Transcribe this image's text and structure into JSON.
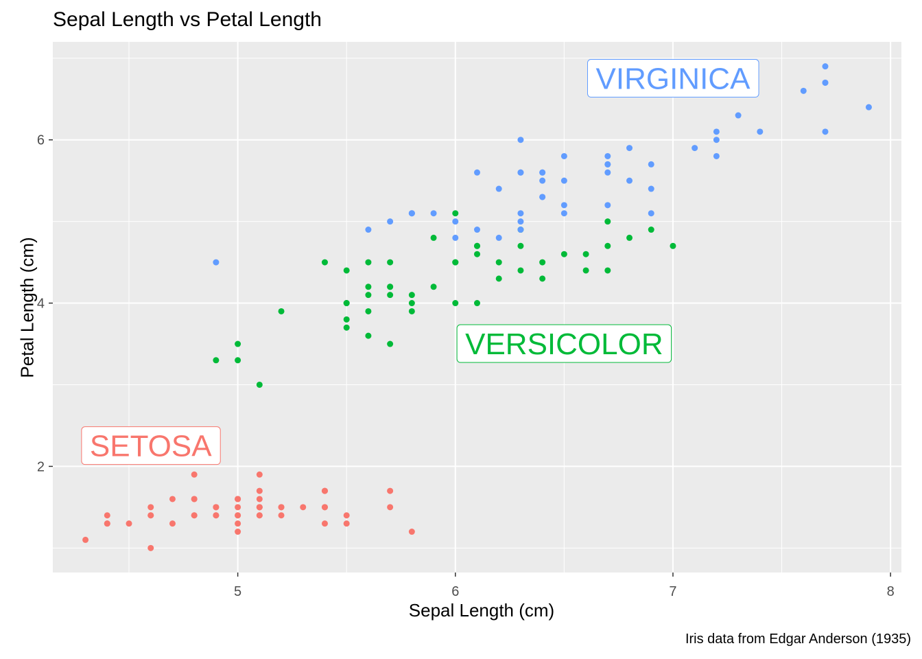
{
  "chart_data": {
    "type": "scatter",
    "title": "Sepal Length vs Petal Length",
    "xlabel": "Sepal Length (cm)",
    "ylabel": "Petal Length (cm)",
    "caption": "Iris data from Edgar Anderson (1935)",
    "xlim": [
      4.15,
      8.05
    ],
    "ylim": [
      0.7,
      7.2
    ],
    "x_ticks": [
      5,
      6,
      7,
      8
    ],
    "y_ticks": [
      2,
      4,
      6
    ],
    "grid": true,
    "background": "#ebebeb",
    "series": [
      {
        "label_text": "SETOSA",
        "color": "#F8766D",
        "label_pos": [
          4.6,
          2.25
        ],
        "points": [
          [
            5.1,
            1.4
          ],
          [
            4.9,
            1.4
          ],
          [
            4.7,
            1.3
          ],
          [
            4.6,
            1.5
          ],
          [
            5.0,
            1.4
          ],
          [
            5.4,
            1.7
          ],
          [
            4.6,
            1.4
          ],
          [
            5.0,
            1.5
          ],
          [
            4.4,
            1.4
          ],
          [
            4.9,
            1.5
          ],
          [
            5.4,
            1.5
          ],
          [
            4.8,
            1.6
          ],
          [
            4.8,
            1.4
          ],
          [
            4.3,
            1.1
          ],
          [
            5.8,
            1.2
          ],
          [
            5.7,
            1.5
          ],
          [
            5.4,
            1.3
          ],
          [
            5.1,
            1.4
          ],
          [
            5.7,
            1.7
          ],
          [
            5.1,
            1.5
          ],
          [
            5.4,
            1.7
          ],
          [
            5.1,
            1.5
          ],
          [
            4.6,
            1.0
          ],
          [
            5.1,
            1.7
          ],
          [
            4.8,
            1.9
          ],
          [
            5.0,
            1.6
          ],
          [
            5.0,
            1.6
          ],
          [
            5.2,
            1.5
          ],
          [
            5.2,
            1.4
          ],
          [
            4.7,
            1.6
          ],
          [
            4.8,
            1.6
          ],
          [
            5.4,
            1.5
          ],
          [
            5.2,
            1.5
          ],
          [
            5.5,
            1.4
          ],
          [
            4.9,
            1.5
          ],
          [
            5.0,
            1.2
          ],
          [
            5.5,
            1.3
          ],
          [
            4.9,
            1.4
          ],
          [
            4.4,
            1.3
          ],
          [
            5.1,
            1.5
          ],
          [
            5.0,
            1.3
          ],
          [
            4.5,
            1.3
          ],
          [
            4.4,
            1.3
          ],
          [
            5.0,
            1.6
          ],
          [
            5.1,
            1.9
          ],
          [
            4.8,
            1.4
          ],
          [
            5.1,
            1.6
          ],
          [
            4.6,
            1.4
          ],
          [
            5.3,
            1.5
          ],
          [
            5.0,
            1.4
          ]
        ]
      },
      {
        "label_text": "VERSICOLOR",
        "color": "#00BA38",
        "label_pos": [
          6.5,
          3.5
        ],
        "points": [
          [
            7.0,
            4.7
          ],
          [
            6.4,
            4.5
          ],
          [
            6.9,
            4.9
          ],
          [
            5.5,
            4.0
          ],
          [
            6.5,
            4.6
          ],
          [
            5.7,
            4.5
          ],
          [
            6.3,
            4.7
          ],
          [
            4.9,
            3.3
          ],
          [
            6.6,
            4.6
          ],
          [
            5.2,
            3.9
          ],
          [
            5.0,
            3.5
          ],
          [
            5.9,
            4.2
          ],
          [
            6.0,
            4.0
          ],
          [
            6.1,
            4.7
          ],
          [
            5.6,
            3.6
          ],
          [
            6.7,
            4.4
          ],
          [
            5.6,
            4.5
          ],
          [
            5.8,
            4.1
          ],
          [
            6.2,
            4.5
          ],
          [
            5.6,
            3.9
          ],
          [
            5.9,
            4.8
          ],
          [
            6.1,
            4.0
          ],
          [
            6.3,
            4.9
          ],
          [
            6.1,
            4.7
          ],
          [
            6.4,
            4.3
          ],
          [
            6.6,
            4.4
          ],
          [
            6.8,
            4.8
          ],
          [
            6.7,
            5.0
          ],
          [
            6.0,
            4.5
          ],
          [
            5.7,
            3.5
          ],
          [
            5.5,
            3.8
          ],
          [
            5.5,
            3.7
          ],
          [
            5.8,
            3.9
          ],
          [
            6.0,
            5.1
          ],
          [
            5.4,
            4.5
          ],
          [
            6.0,
            4.5
          ],
          [
            6.7,
            4.7
          ],
          [
            6.3,
            4.4
          ],
          [
            5.6,
            4.1
          ],
          [
            5.5,
            4.0
          ],
          [
            5.5,
            4.4
          ],
          [
            6.1,
            4.6
          ],
          [
            5.8,
            4.0
          ],
          [
            5.0,
            3.3
          ],
          [
            5.6,
            4.2
          ],
          [
            5.7,
            4.2
          ],
          [
            5.7,
            4.2
          ],
          [
            6.2,
            4.3
          ],
          [
            5.1,
            3.0
          ],
          [
            5.7,
            4.1
          ]
        ]
      },
      {
        "label_text": "VIRGINICA",
        "color": "#619CFF",
        "label_pos": [
          7.0,
          6.75
        ],
        "points": [
          [
            6.3,
            6.0
          ],
          [
            5.8,
            5.1
          ],
          [
            7.1,
            5.9
          ],
          [
            6.3,
            5.6
          ],
          [
            6.5,
            5.8
          ],
          [
            7.6,
            6.6
          ],
          [
            4.9,
            4.5
          ],
          [
            7.3,
            6.3
          ],
          [
            6.7,
            5.8
          ],
          [
            7.2,
            6.1
          ],
          [
            6.5,
            5.1
          ],
          [
            6.4,
            5.3
          ],
          [
            6.8,
            5.5
          ],
          [
            5.7,
            5.0
          ],
          [
            5.8,
            5.1
          ],
          [
            6.4,
            5.3
          ],
          [
            6.5,
            5.5
          ],
          [
            7.7,
            6.7
          ],
          [
            7.7,
            6.9
          ],
          [
            6.0,
            5.0
          ],
          [
            6.9,
            5.7
          ],
          [
            5.6,
            4.9
          ],
          [
            7.7,
            6.7
          ],
          [
            6.3,
            4.9
          ],
          [
            6.7,
            5.7
          ],
          [
            7.2,
            6.0
          ],
          [
            6.2,
            4.8
          ],
          [
            6.1,
            4.9
          ],
          [
            6.4,
            5.6
          ],
          [
            7.2,
            5.8
          ],
          [
            7.4,
            6.1
          ],
          [
            7.9,
            6.4
          ],
          [
            6.4,
            5.6
          ],
          [
            6.3,
            5.1
          ],
          [
            6.1,
            5.6
          ],
          [
            7.7,
            6.1
          ],
          [
            6.3,
            5.6
          ],
          [
            6.4,
            5.5
          ],
          [
            6.0,
            4.8
          ],
          [
            6.9,
            5.4
          ],
          [
            6.7,
            5.6
          ],
          [
            6.9,
            5.1
          ],
          [
            5.8,
            5.1
          ],
          [
            6.8,
            5.9
          ],
          [
            6.7,
            5.7
          ],
          [
            6.7,
            5.2
          ],
          [
            6.3,
            5.0
          ],
          [
            6.5,
            5.2
          ],
          [
            6.2,
            5.4
          ],
          [
            5.9,
            5.1
          ]
        ]
      }
    ]
  }
}
